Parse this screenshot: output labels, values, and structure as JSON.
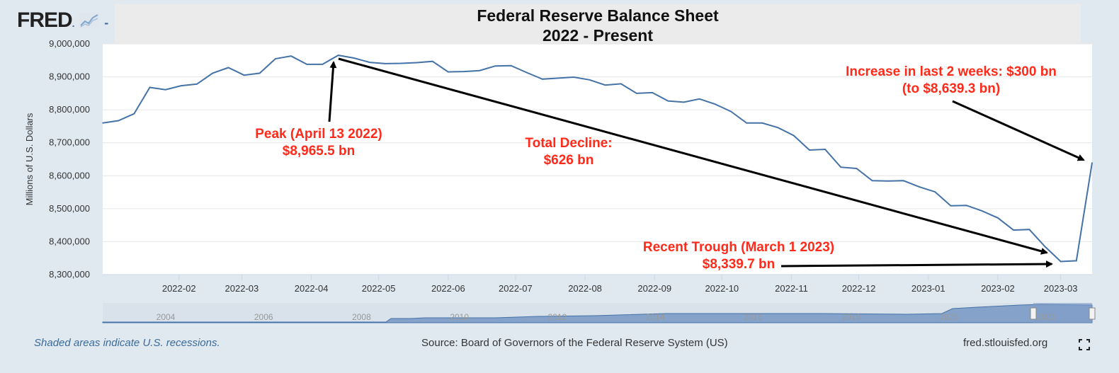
{
  "logo": {
    "text": "FRED"
  },
  "title": {
    "line1": "Federal Reserve Balance Sheet",
    "line2": "2022 - Present"
  },
  "colors": {
    "line": "#4572a7",
    "annotation": "#ff2a1a",
    "background": "#e1e9f0"
  },
  "chart_data": {
    "type": "line",
    "ylabel": "Millions of U.S. Dollars",
    "ylim": [
      8300000,
      9000000
    ],
    "yticks": [
      "9,000,000",
      "8,900,000",
      "8,800,000",
      "8,700,000",
      "8,600,000",
      "8,500,000",
      "8,400,000",
      "8,300,000"
    ],
    "yticks_values": [
      9000000,
      8900000,
      8800000,
      8700000,
      8600000,
      8500000,
      8400000,
      8300000
    ],
    "xlim": [
      "2021-12-29",
      "2023-03-15"
    ],
    "xticks": [
      "2022-02",
      "2022-03",
      "2022-04",
      "2022-05",
      "2022-06",
      "2022-07",
      "2022-08",
      "2022-09",
      "2022-10",
      "2022-11",
      "2022-12",
      "2023-01",
      "2023-02",
      "2023-03"
    ],
    "xticks_dates": [
      "2022-02-01",
      "2022-03-01",
      "2022-04-01",
      "2022-05-01",
      "2022-06-01",
      "2022-07-01",
      "2022-08-01",
      "2022-09-01",
      "2022-10-01",
      "2022-11-01",
      "2022-12-01",
      "2023-01-01",
      "2023-02-01",
      "2023-03-01"
    ],
    "grid": true,
    "series": [
      {
        "points": [
          [
            "2021-12-29",
            8760000
          ],
          [
            "2022-01-05",
            8767000
          ],
          [
            "2022-01-12",
            8788000
          ],
          [
            "2022-01-19",
            8868000
          ],
          [
            "2022-01-26",
            8861000
          ],
          [
            "2022-02-02",
            8873000
          ],
          [
            "2022-02-09",
            8878000
          ],
          [
            "2022-02-16",
            8911000
          ],
          [
            "2022-02-23",
            8928000
          ],
          [
            "2022-03-02",
            8905000
          ],
          [
            "2022-03-09",
            8911000
          ],
          [
            "2022-03-16",
            8955000
          ],
          [
            "2022-03-23",
            8963000
          ],
          [
            "2022-03-30",
            8938000
          ],
          [
            "2022-04-06",
            8938000
          ],
          [
            "2022-04-13",
            8965500
          ],
          [
            "2022-04-20",
            8957000
          ],
          [
            "2022-04-27",
            8944000
          ],
          [
            "2022-05-04",
            8940000
          ],
          [
            "2022-05-11",
            8941000
          ],
          [
            "2022-05-18",
            8943000
          ],
          [
            "2022-05-25",
            8947000
          ],
          [
            "2022-06-01",
            8915000
          ],
          [
            "2022-06-08",
            8916000
          ],
          [
            "2022-06-15",
            8919000
          ],
          [
            "2022-06-22",
            8933000
          ],
          [
            "2022-06-29",
            8934000
          ],
          [
            "2022-07-06",
            8913000
          ],
          [
            "2022-07-13",
            8893000
          ],
          [
            "2022-07-20",
            8896000
          ],
          [
            "2022-07-27",
            8899000
          ],
          [
            "2022-08-03",
            8891000
          ],
          [
            "2022-08-10",
            8875000
          ],
          [
            "2022-08-17",
            8879000
          ],
          [
            "2022-08-24",
            8850000
          ],
          [
            "2022-08-31",
            8852000
          ],
          [
            "2022-09-07",
            8827000
          ],
          [
            "2022-09-14",
            8823000
          ],
          [
            "2022-09-21",
            8833000
          ],
          [
            "2022-09-28",
            8817000
          ],
          [
            "2022-10-05",
            8795000
          ],
          [
            "2022-10-12",
            8760000
          ],
          [
            "2022-10-19",
            8760000
          ],
          [
            "2022-10-26",
            8746000
          ],
          [
            "2022-11-02",
            8722000
          ],
          [
            "2022-11-09",
            8678000
          ],
          [
            "2022-11-16",
            8680000
          ],
          [
            "2022-11-23",
            8626000
          ],
          [
            "2022-11-30",
            8622000
          ],
          [
            "2022-12-07",
            8585000
          ],
          [
            "2022-12-14",
            8584000
          ],
          [
            "2022-12-21",
            8585000
          ],
          [
            "2022-12-28",
            8566000
          ],
          [
            "2023-01-04",
            8551000
          ],
          [
            "2023-01-11",
            8509000
          ],
          [
            "2023-01-18",
            8510000
          ],
          [
            "2023-01-25",
            8493000
          ],
          [
            "2023-02-01",
            8472000
          ],
          [
            "2023-02-08",
            8435000
          ],
          [
            "2023-02-15",
            8437000
          ],
          [
            "2023-02-22",
            8385000
          ],
          [
            "2023-03-01",
            8339700
          ],
          [
            "2023-03-08",
            8342000
          ],
          [
            "2023-03-15",
            8639300
          ]
        ]
      }
    ],
    "navigator": {
      "xticks": [
        "2004",
        "2006",
        "2008",
        "2010",
        "2012",
        "2014",
        "2016",
        "2018",
        "2020",
        "2022"
      ]
    },
    "annotations": [
      {
        "key": "peak",
        "line1": "Peak (April 13 2022)",
        "line2": "$8,965.5 bn"
      },
      {
        "key": "decline",
        "line1": "Total Decline:",
        "line2": "$626 bn"
      },
      {
        "key": "increase",
        "line1": "Increase in last 2 weeks: $300 bn",
        "line2": "(to $8,639.3 bn)"
      },
      {
        "key": "trough",
        "line1": "Recent Trough (March 1 2023)",
        "line2": "$8,339.7 bn"
      }
    ]
  },
  "footer": {
    "recession_note": "Shaded areas indicate U.S. recessions.",
    "source": "Source: Board of Governors of the Federal Reserve System (US)",
    "site": "fred.stlouisfed.org"
  }
}
